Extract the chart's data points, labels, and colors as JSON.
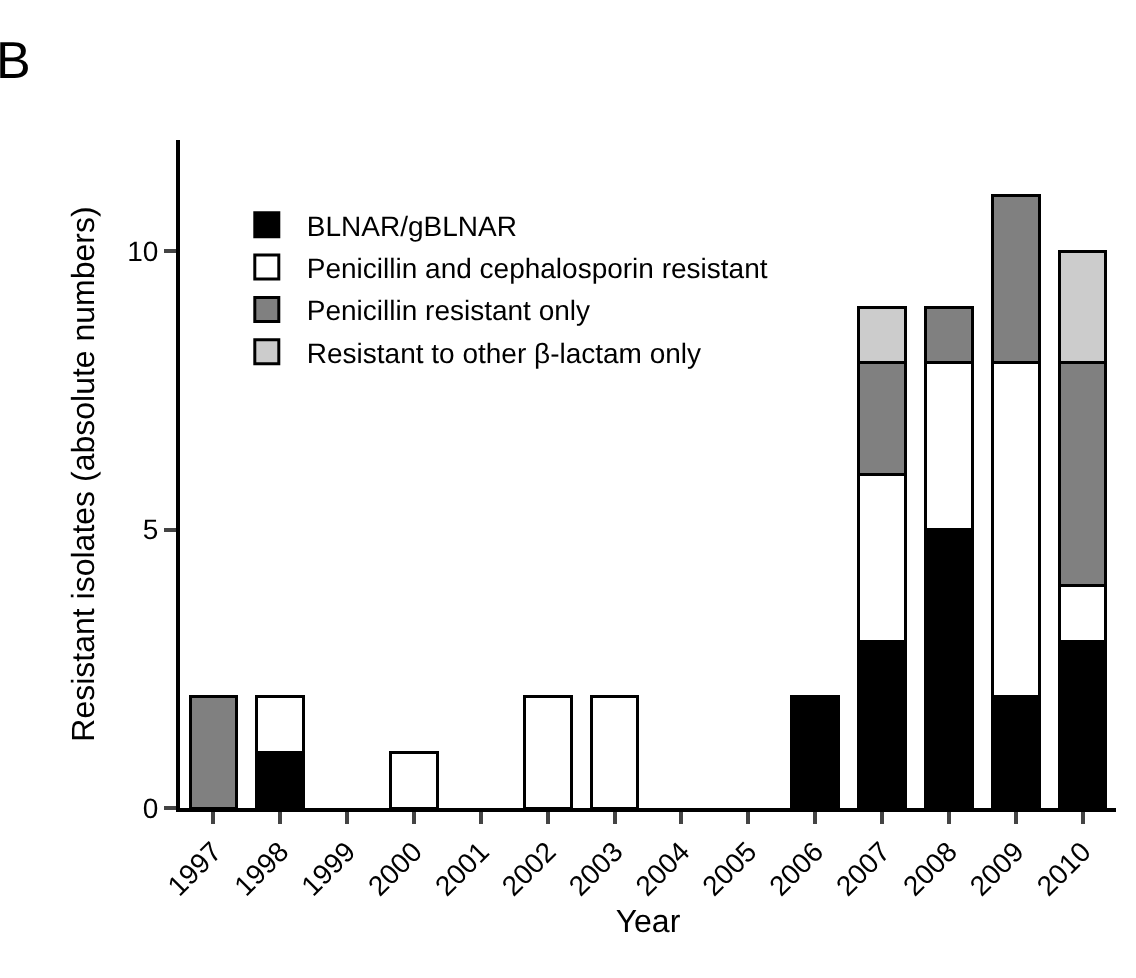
{
  "chart_data": {
    "type": "bar",
    "stacked": true,
    "xlabel": "Year",
    "ylabel": "Resistant isolates (absolute numbers)",
    "annotations": [
      "B"
    ],
    "categories": [
      "1997",
      "1998",
      "1999",
      "2000",
      "2001",
      "2002",
      "2003",
      "2004",
      "2005",
      "2006",
      "2007",
      "2008",
      "2009",
      "2010"
    ],
    "series": [
      {
        "name": "BLNAR/gBLNAR",
        "color": "#000000",
        "values": [
          0,
          1,
          0,
          0,
          0,
          0,
          0,
          0,
          0,
          2,
          3,
          5,
          2,
          3
        ]
      },
      {
        "name": "Penicillin and cephalosporin resistant",
        "color": "#ffffff",
        "values": [
          0,
          1,
          0,
          1,
          0,
          2,
          2,
          0,
          0,
          0,
          3,
          3,
          6,
          1
        ]
      },
      {
        "name": "Penicillin resistant only",
        "color": "#808080",
        "values": [
          2,
          0,
          0,
          0,
          0,
          0,
          0,
          0,
          0,
          0,
          2,
          1,
          3,
          4
        ]
      },
      {
        "name": "Resistant to other β-lactam only",
        "color": "#cccccc",
        "values": [
          0,
          0,
          0,
          0,
          0,
          0,
          0,
          0,
          0,
          0,
          1,
          0,
          0,
          2
        ]
      }
    ],
    "ylim": [
      0,
      12
    ],
    "yticks": [
      0,
      5,
      10
    ],
    "grid": false,
    "legend": "top left"
  }
}
